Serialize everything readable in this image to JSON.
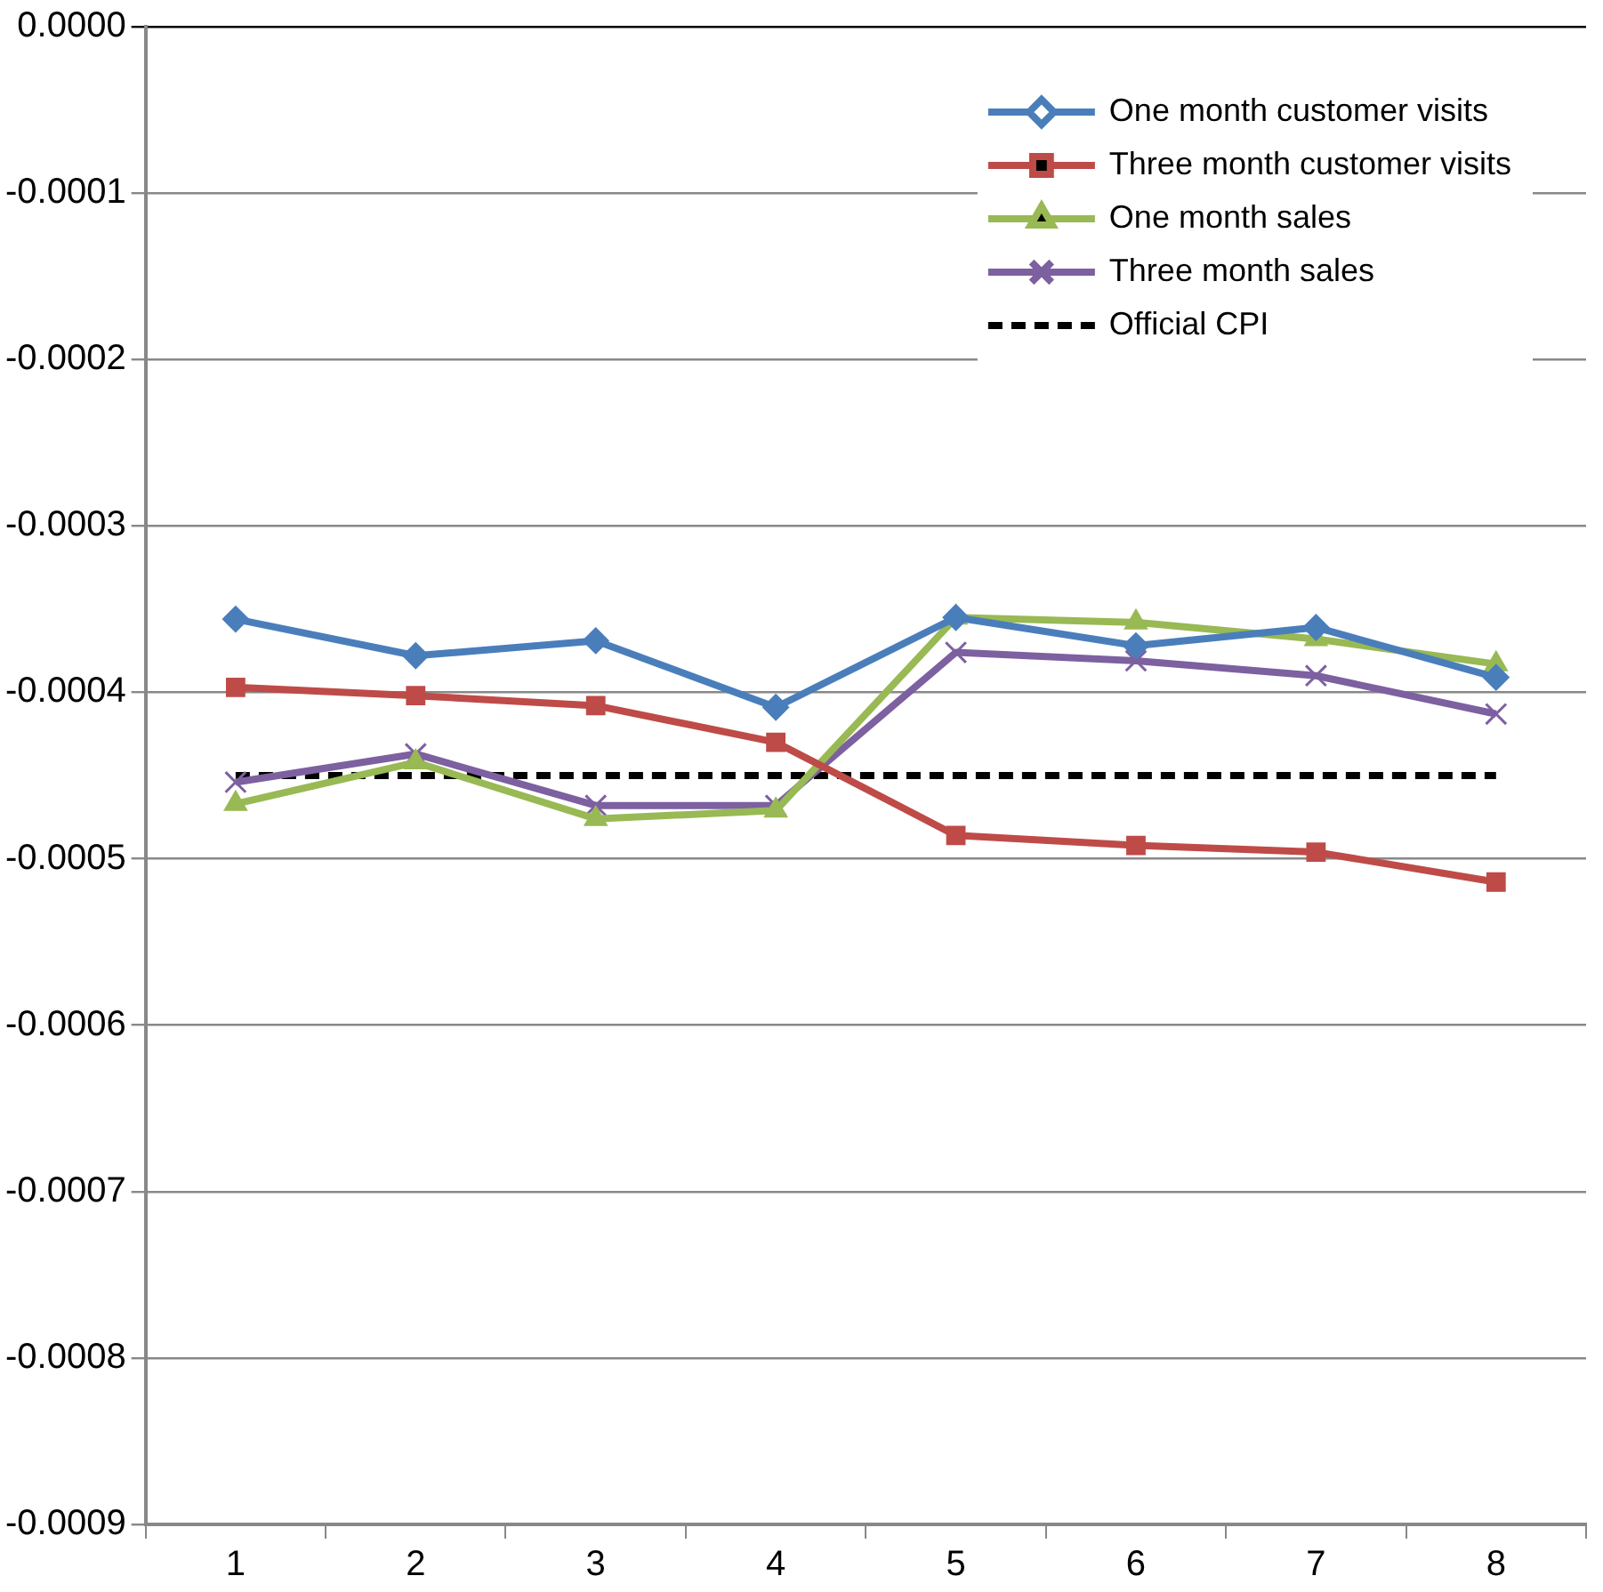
{
  "chart_data": {
    "type": "line",
    "categories": [
      "1",
      "2",
      "3",
      "4",
      "5",
      "6",
      "7",
      "8"
    ],
    "series": [
      {
        "name": "One month customer visits",
        "color": "#4a7ebb",
        "marker": "diamond",
        "values": [
          -0.000356,
          -0.000378,
          -0.000369,
          -0.000409,
          -0.000355,
          -0.000372,
          -0.000361,
          -0.000391
        ]
      },
      {
        "name": "Three month customer visits",
        "color": "#be4b48",
        "marker": "square",
        "values": [
          -0.000397,
          -0.000402,
          -0.000408,
          -0.00043,
          -0.000486,
          -0.000492,
          -0.000496,
          -0.000514
        ]
      },
      {
        "name": "One month sales",
        "color": "#98b954",
        "marker": "triangle",
        "values": [
          -0.000467,
          -0.000442,
          -0.000476,
          -0.000471,
          -0.000355,
          -0.000358,
          -0.000368,
          -0.000383
        ]
      },
      {
        "name": "Three month sales",
        "color": "#7d60a0",
        "marker": "cross",
        "values": [
          -0.000454,
          -0.000437,
          -0.000468,
          -0.000468,
          -0.000376,
          -0.000381,
          -0.00039,
          -0.000413
        ]
      },
      {
        "name": "Official CPI",
        "color": "#000000",
        "marker": "none",
        "line_style": "dashed",
        "values": [
          -0.00045,
          -0.00045,
          -0.00045,
          -0.00045,
          -0.00045,
          -0.00045,
          -0.00045,
          -0.00045
        ]
      }
    ],
    "ylim": [
      -0.0009,
      0
    ],
    "yticks": [
      {
        "value": -0.0009,
        "label": "-0.0009"
      },
      {
        "value": -0.0008,
        "label": "-0.0008"
      },
      {
        "value": -0.0007,
        "label": "-0.0007"
      },
      {
        "value": -0.0006,
        "label": "-0.0006"
      },
      {
        "value": -0.0005,
        "label": "-0.0005"
      },
      {
        "value": -0.0004,
        "label": "-0.0004"
      },
      {
        "value": -0.0003,
        "label": "-0.0003"
      },
      {
        "value": -0.0002,
        "label": "-0.0002"
      },
      {
        "value": -0.0001,
        "label": "-0.0001"
      },
      {
        "value": 0,
        "label": "0.0000"
      }
    ],
    "grid": "y",
    "legend": "top right"
  }
}
